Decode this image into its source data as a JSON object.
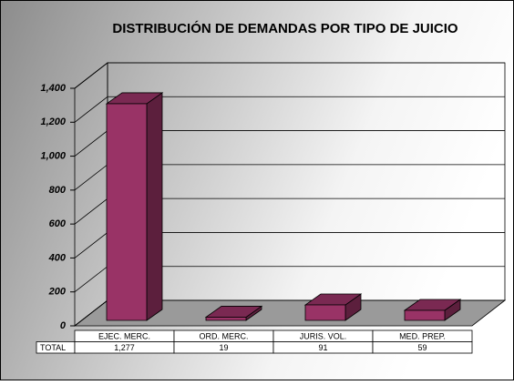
{
  "chart_data": {
    "type": "bar3d",
    "title": "DISTRIBUCIÓN DE DEMANDAS POR TIPO DE JUICIO",
    "categories": [
      "EJEC. MERC.",
      "ORD. MERC.",
      "JURIS. VOL.",
      "MED. PREP."
    ],
    "series": [
      {
        "name": "TOTAL",
        "color": "#993366",
        "values": [
          1277,
          19,
          91,
          59
        ],
        "value_labels": [
          "1,277",
          "19",
          "91",
          "59"
        ]
      }
    ],
    "ylim": [
      0,
      1400
    ],
    "yticks": [
      0,
      200,
      400,
      600,
      800,
      {
        "value": 1000,
        "label": "1,000"
      },
      {
        "value": 1200,
        "label": "1,200"
      },
      {
        "value": 1400,
        "label": "1,400"
      }
    ],
    "grid": true
  }
}
